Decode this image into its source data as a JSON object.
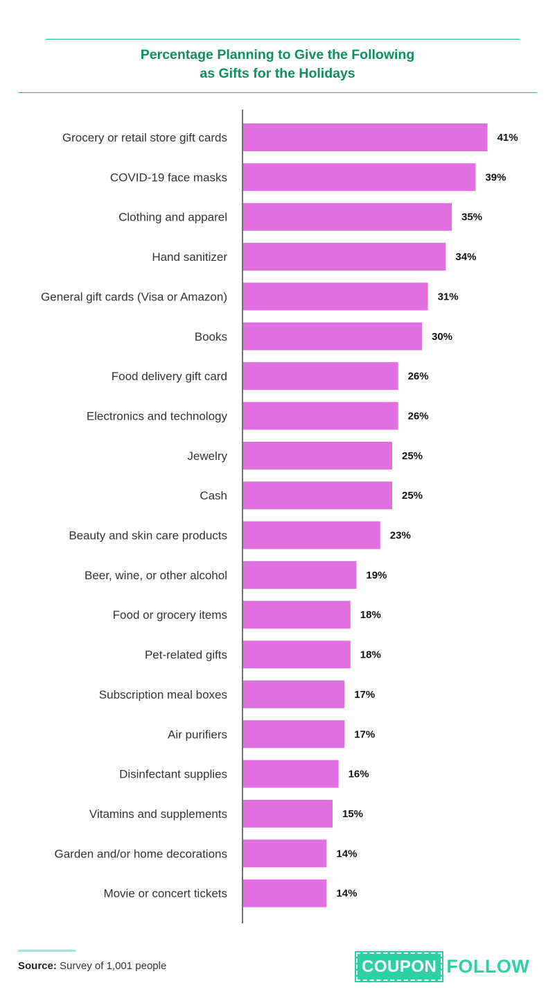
{
  "chart_data": {
    "type": "bar",
    "orientation": "horizontal",
    "title": "Percentage Planning to Give the Following as Gifts for the Holidays",
    "title_lines": [
      "Percentage Planning to Give the Following",
      "as Gifts for the Holidays"
    ],
    "categories": [
      "Grocery or retail store gift cards",
      "COVID-19 face masks",
      "Clothing and apparel",
      "Hand sanitizer",
      "General gift cards (Visa or Amazon)",
      "Books",
      "Food delivery gift card",
      "Electronics and technology",
      "Jewelry",
      "Cash",
      "Beauty and skin care products",
      "Beer, wine, or other alcohol",
      "Food or grocery items",
      "Pet-related gifts",
      "Subscription meal boxes",
      "Air purifiers",
      "Disinfectant supplies",
      "Vitamins and supplements",
      "Garden and/or home decorations",
      "Movie or concert tickets"
    ],
    "values": [
      41,
      39,
      35,
      34,
      31,
      30,
      26,
      26,
      25,
      25,
      23,
      19,
      18,
      18,
      17,
      17,
      16,
      15,
      14,
      14
    ],
    "value_suffix": "%",
    "xlim": [
      0,
      45
    ],
    "grid": false,
    "bar_color": "#e06fe0"
  },
  "footer": {
    "source_label": "Source:",
    "source_text": "Survey of 1,001 people",
    "logo_part1": "COUPON",
    "logo_part2": "FOLLOW"
  },
  "colors": {
    "title": "#0e8f63",
    "rule": "#2db998",
    "logo": "#2fd0a6"
  }
}
